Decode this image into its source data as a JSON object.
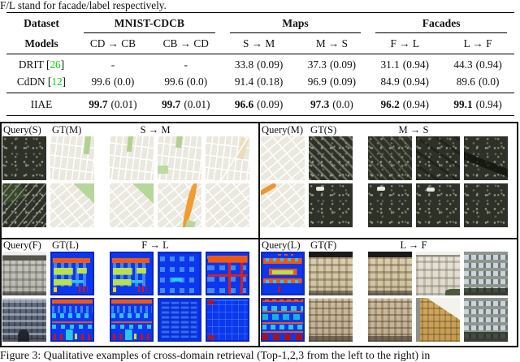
{
  "page": {
    "intro_text": "F/L stand for facade/label respectively.",
    "caption": "Figure 3: Qualitative examples of cross-domain retrieval (Top-1,2,3 from the left to the right) in"
  },
  "table": {
    "col_dataset": "Dataset",
    "col_models": "Models",
    "groups": [
      "MNIST-CDCB",
      "Maps",
      "Facades"
    ],
    "subcols": [
      "CD → CB",
      "CB → CD",
      "S → M",
      "M → S",
      "F → L",
      "L → F"
    ],
    "rows": [
      {
        "name_pre": "DRIT [",
        "cite": "26",
        "name_post": "]",
        "cells": [
          {
            "v": "-",
            "s": ""
          },
          {
            "v": "-",
            "s": ""
          },
          {
            "v": "33.8",
            "s": "(0.09)"
          },
          {
            "v": "37.3",
            "s": "(0.09)"
          },
          {
            "v": "31.1",
            "s": "(0.94)"
          },
          {
            "v": "44.3",
            "s": "(0.94)"
          }
        ]
      },
      {
        "name_pre": "CdDN [",
        "cite": "12",
        "name_post": "]",
        "cells": [
          {
            "v": "99.6",
            "s": "(0.0)"
          },
          {
            "v": "99.6",
            "s": "(0.0)"
          },
          {
            "v": "91.4",
            "s": "(0.18)"
          },
          {
            "v": "96.9",
            "s": "(0.09)"
          },
          {
            "v": "84.9",
            "s": "(0.94)"
          },
          {
            "v": "89.6",
            "s": "(0.0)"
          }
        ]
      },
      {
        "name_pre": "IIAE",
        "cite": "",
        "name_post": "",
        "cells": [
          {
            "v": "99.7",
            "s": "(0.01)"
          },
          {
            "v": "99.7",
            "s": "(0.01)"
          },
          {
            "v": "96.6",
            "s": "(0.09)"
          },
          {
            "v": "97.3",
            "s": "(0.0)"
          },
          {
            "v": "96.2",
            "s": "(0.94)"
          },
          {
            "v": "99.1",
            "s": "(0.94)"
          }
        ]
      }
    ]
  },
  "figure": {
    "panels": [
      {
        "query": "Query(S)",
        "gt": "GT(M)",
        "arrow": "S → M",
        "rows": [
          [
            "sat-speck",
            "map-green1",
            "map-green2",
            "map-parks",
            "map-tan"
          ],
          [
            "sat-diag",
            "map-tri",
            "map-tri",
            "map-orange",
            "map-dplain"
          ]
        ]
      },
      {
        "query": "Query(M)",
        "gt": "GT(S)",
        "arrow": "M → S",
        "rows": [
          [
            "map-qdiag",
            "sat-stripe",
            "sat-stripe2",
            "sat-dark1",
            "sat-dark2"
          ],
          [
            "map-qorange",
            "sat-spot",
            "sat-spot2",
            "sat-spot3",
            "sat-plain"
          ]
        ]
      },
      {
        "query": "Query(F)",
        "gt": "GT(L)",
        "arrow": "F → L",
        "rows": [
          [
            "ph-gray",
            "lb-a",
            "lb-a",
            "lb-b",
            "lb-c"
          ],
          [
            "ph-blue",
            "lb-d",
            "lb-d",
            "lb-e",
            "lb-f"
          ]
        ]
      },
      {
        "query": "Query(L)",
        "gt": "GT(F)",
        "arrow": "L → F",
        "rows": [
          [
            "lb-q1",
            "ph-cream",
            "ph-cream",
            "ph-white",
            "ph-mod"
          ],
          [
            "lb-q2",
            "ph-beige",
            "ph-beige",
            "ph-corner",
            "ph-mod2"
          ]
        ]
      }
    ]
  },
  "colors": {
    "citation_green": "#00d800",
    "label_blue": "#0b38ee",
    "label_orange": "#f2570d",
    "map_green": "#b2d191",
    "map_orange": "#f29b2e"
  }
}
